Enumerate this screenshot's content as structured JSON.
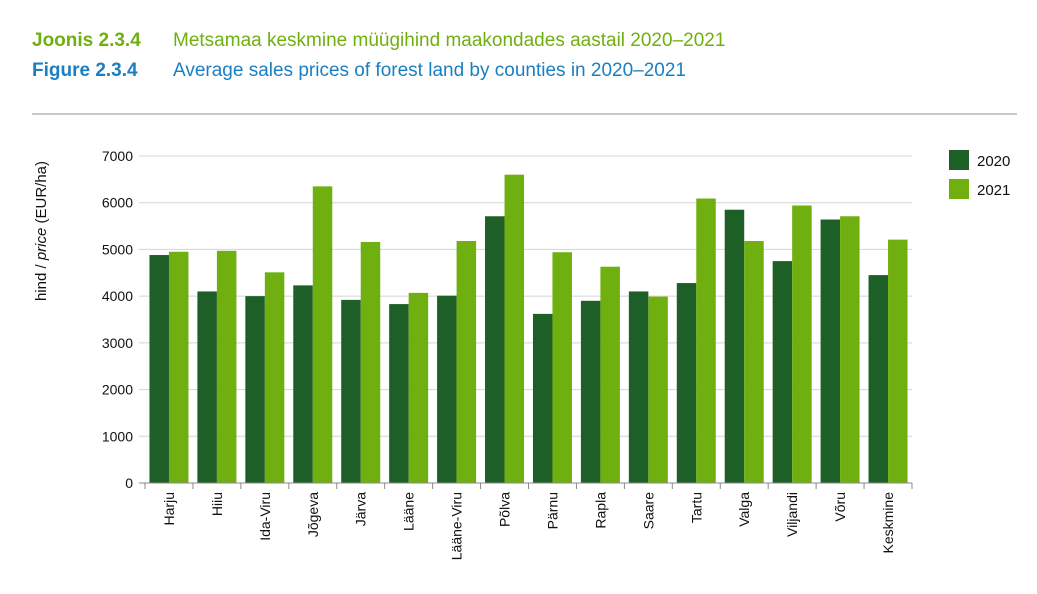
{
  "header": {
    "et_label": "Joonis 2.3.4",
    "et_title": "Metsamaa keskmine müügihind maakondades aastail 2020–2021",
    "en_label": "Figure 2.3.4",
    "en_title": "Average sales prices of forest land by counties in 2020–2021"
  },
  "colors": {
    "et_header": "#6fb010",
    "en_header": "#1a7fc1",
    "series_2020": "#1e5e27",
    "series_2021": "#6fb010",
    "grid": "#d4d4d4"
  },
  "chart_data": {
    "type": "bar",
    "title": "",
    "xlabel": "",
    "ylabel_plain": "hind / ",
    "ylabel_italic": "price",
    "ylabel_unit": " (EUR/ha)",
    "ylim": [
      0,
      7000
    ],
    "yticks": [
      0,
      1000,
      2000,
      3000,
      4000,
      5000,
      6000,
      7000
    ],
    "grid": true,
    "legend_position": "top-right",
    "categories": [
      "Harju",
      "Hiiu",
      "Ida-Viru",
      "Jõgeva",
      "Järva",
      "Lääne",
      "Lääne-Viru",
      "Põlva",
      "Pärnu",
      "Rapla",
      "Saare",
      "Tartu",
      "Valga",
      "Viljandi",
      "Võru",
      "Keskmine"
    ],
    "series": [
      {
        "name": "2020",
        "values": [
          4880,
          4100,
          4000,
          4230,
          3920,
          3830,
          4010,
          5710,
          3620,
          3900,
          4100,
          4280,
          5850,
          4750,
          5640,
          4450
        ]
      },
      {
        "name": "2021",
        "values": [
          4950,
          4970,
          4510,
          6350,
          5160,
          4070,
          5180,
          6600,
          4940,
          4630,
          3990,
          6090,
          5180,
          5940,
          5710,
          5210
        ]
      }
    ]
  }
}
